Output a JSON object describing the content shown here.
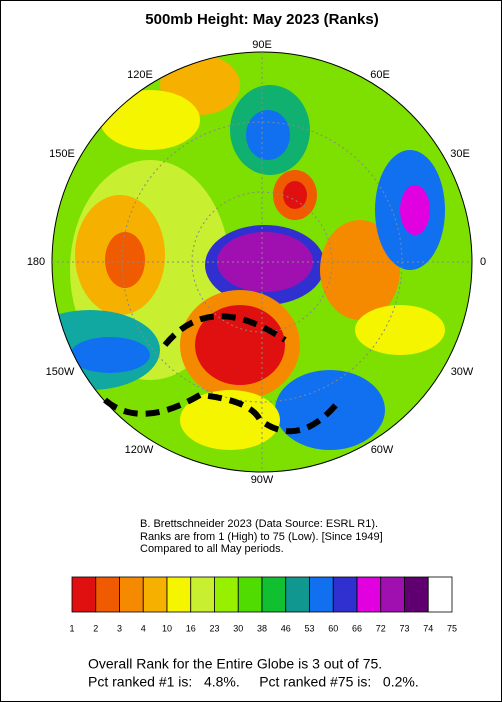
{
  "header": {
    "title": "500mb Height: May 2023 (Ranks)"
  },
  "map": {
    "longitude_labels": [
      "90E",
      "60E",
      "30E",
      "0",
      "30W",
      "60W",
      "90W",
      "120W",
      "150W",
      "180",
      "150E",
      "120E"
    ]
  },
  "credits": [
    "B. Brettschneider 2023 (Data Source: ESRL R1).",
    "Ranks are from 1 (High) to 75 (Low). [Since 1949]",
    "Compared to all May periods."
  ],
  "colorbar": {
    "labels": [
      1,
      2,
      3,
      4,
      10,
      16,
      23,
      30,
      38,
      46,
      53,
      60,
      66,
      72,
      73,
      74,
      75
    ],
    "colors": [
      "#e01010",
      "#f05a00",
      "#f58a00",
      "#f5b000",
      "#f5f500",
      "#c8f030",
      "#96f000",
      "#50dc00",
      "#10c030",
      "#109890",
      "#1070f0",
      "#3030d0",
      "#e000e0",
      "#a010b0",
      "#600070",
      "#ffffff"
    ]
  },
  "summary": [
    "Overall Rank for the Entire Globe is 3 out of 75.",
    "Pct ranked #1 is:   4.8%.     Pct ranked #75 is:   0.2%."
  ]
}
